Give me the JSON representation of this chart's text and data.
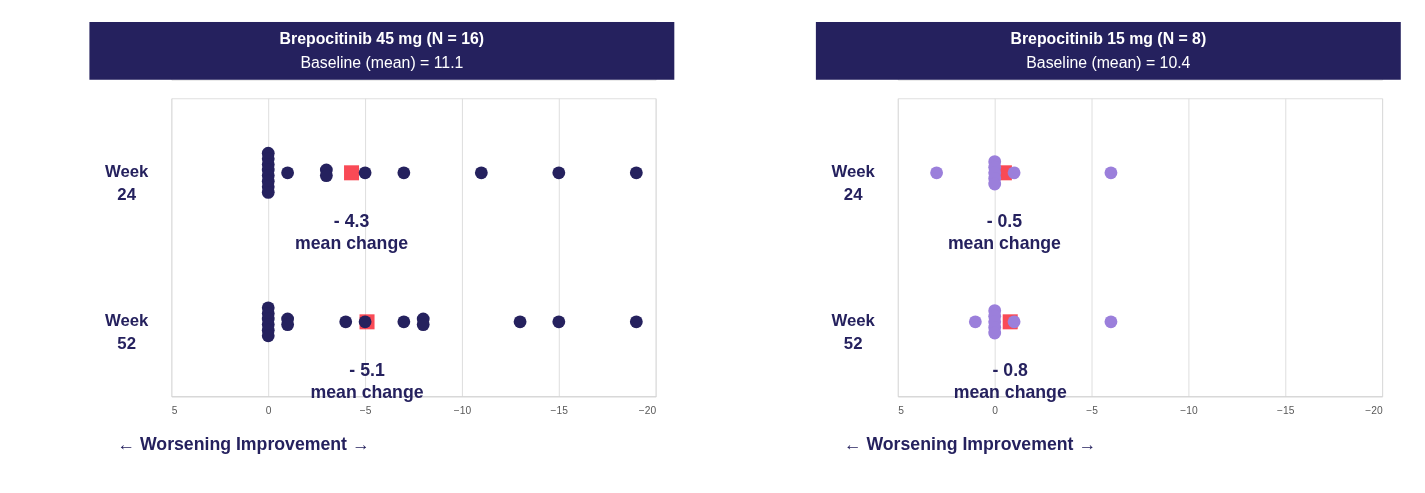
{
  "chart_data": [
    {
      "type": "scatter",
      "orientation": "horizontal",
      "title": "Brepocitinib 45 mg (N = 16)",
      "subtitle": "Baseline (mean) = 11.1",
      "categories": [
        "Week 24",
        "Week 52"
      ],
      "xlim": [
        5,
        -20
      ],
      "xticks": [
        5,
        0,
        -5,
        -10,
        -15,
        -20
      ],
      "grid": "x",
      "series": [
        {
          "type": "scatter",
          "marker": "circle",
          "color": "#25215e",
          "x": [
            "Week 24",
            "Week 24",
            "Week 24",
            "Week 24",
            "Week 24",
            "Week 24",
            "Week 24",
            "Week 24",
            "Week 24",
            "Week 24",
            "Week 24",
            "Week 24",
            "Week 24",
            "Week 24",
            "Week 24",
            "Week 24"
          ],
          "values": [
            0,
            0,
            0,
            0,
            0,
            0,
            0,
            0,
            -1,
            -3,
            -3,
            -5,
            -7,
            -11,
            -15,
            -19
          ]
        },
        {
          "type": "scatter",
          "marker": "circle",
          "color": "#25215e",
          "x": [
            "Week 52",
            "Week 52",
            "Week 52",
            "Week 52",
            "Week 52",
            "Week 52",
            "Week 52",
            "Week 52",
            "Week 52",
            "Week 52",
            "Week 52",
            "Week 52",
            "Week 52",
            "Week 52",
            "Week 52",
            "Week 52"
          ],
          "values": [
            0,
            0,
            0,
            0,
            0,
            0,
            -1,
            -1,
            -4,
            -5,
            -7,
            -8,
            -8,
            -13,
            -15,
            -19
          ]
        },
        {
          "type": "scatter",
          "marker": "square",
          "color": "#f94a56",
          "x": [
            "Week 24",
            "Week 52"
          ],
          "values": [
            -4.3,
            -5.1
          ],
          "value_labels": [
            "- 4.3\nmean change",
            "- 5.1\nmean change"
          ]
        }
      ],
      "annotations": [
        "← Worsening   Improvement →"
      ]
    },
    {
      "type": "scatter",
      "orientation": "horizontal",
      "title": "Brepocitinib 15 mg (N = 8)",
      "subtitle": "Baseline (mean) = 10.4",
      "categories": [
        "Week 24",
        "Week 52"
      ],
      "xlim": [
        5,
        -20
      ],
      "xticks": [
        5,
        0,
        -5,
        -10,
        -15,
        -20
      ],
      "grid": "x",
      "series": [
        {
          "type": "scatter",
          "marker": "circle",
          "color": "#9b7fdb",
          "x": [
            "Week 24",
            "Week 24",
            "Week 24",
            "Week 24",
            "Week 24",
            "Week 24",
            "Week 24",
            "Week 24"
          ],
          "values": [
            3,
            0,
            0,
            0,
            0,
            0,
            -1,
            -6
          ]
        },
        {
          "type": "scatter",
          "marker": "circle",
          "color": "#9b7fdb",
          "x": [
            "Week 52",
            "Week 52",
            "Week 52",
            "Week 52",
            "Week 52",
            "Week 52",
            "Week 52",
            "Week 52"
          ],
          "values": [
            1,
            0,
            0,
            0,
            0,
            0,
            -1,
            -6
          ]
        },
        {
          "type": "scatter",
          "marker": "square",
          "color": "#f94a56",
          "x": [
            "Week 24",
            "Week 52"
          ],
          "values": [
            -0.5,
            -0.8
          ],
          "value_labels": [
            "- 0.5\nmean change",
            "- 0.8\nmean change"
          ]
        }
      ],
      "annotations": [
        "← Worsening   Improvement →"
      ]
    }
  ]
}
